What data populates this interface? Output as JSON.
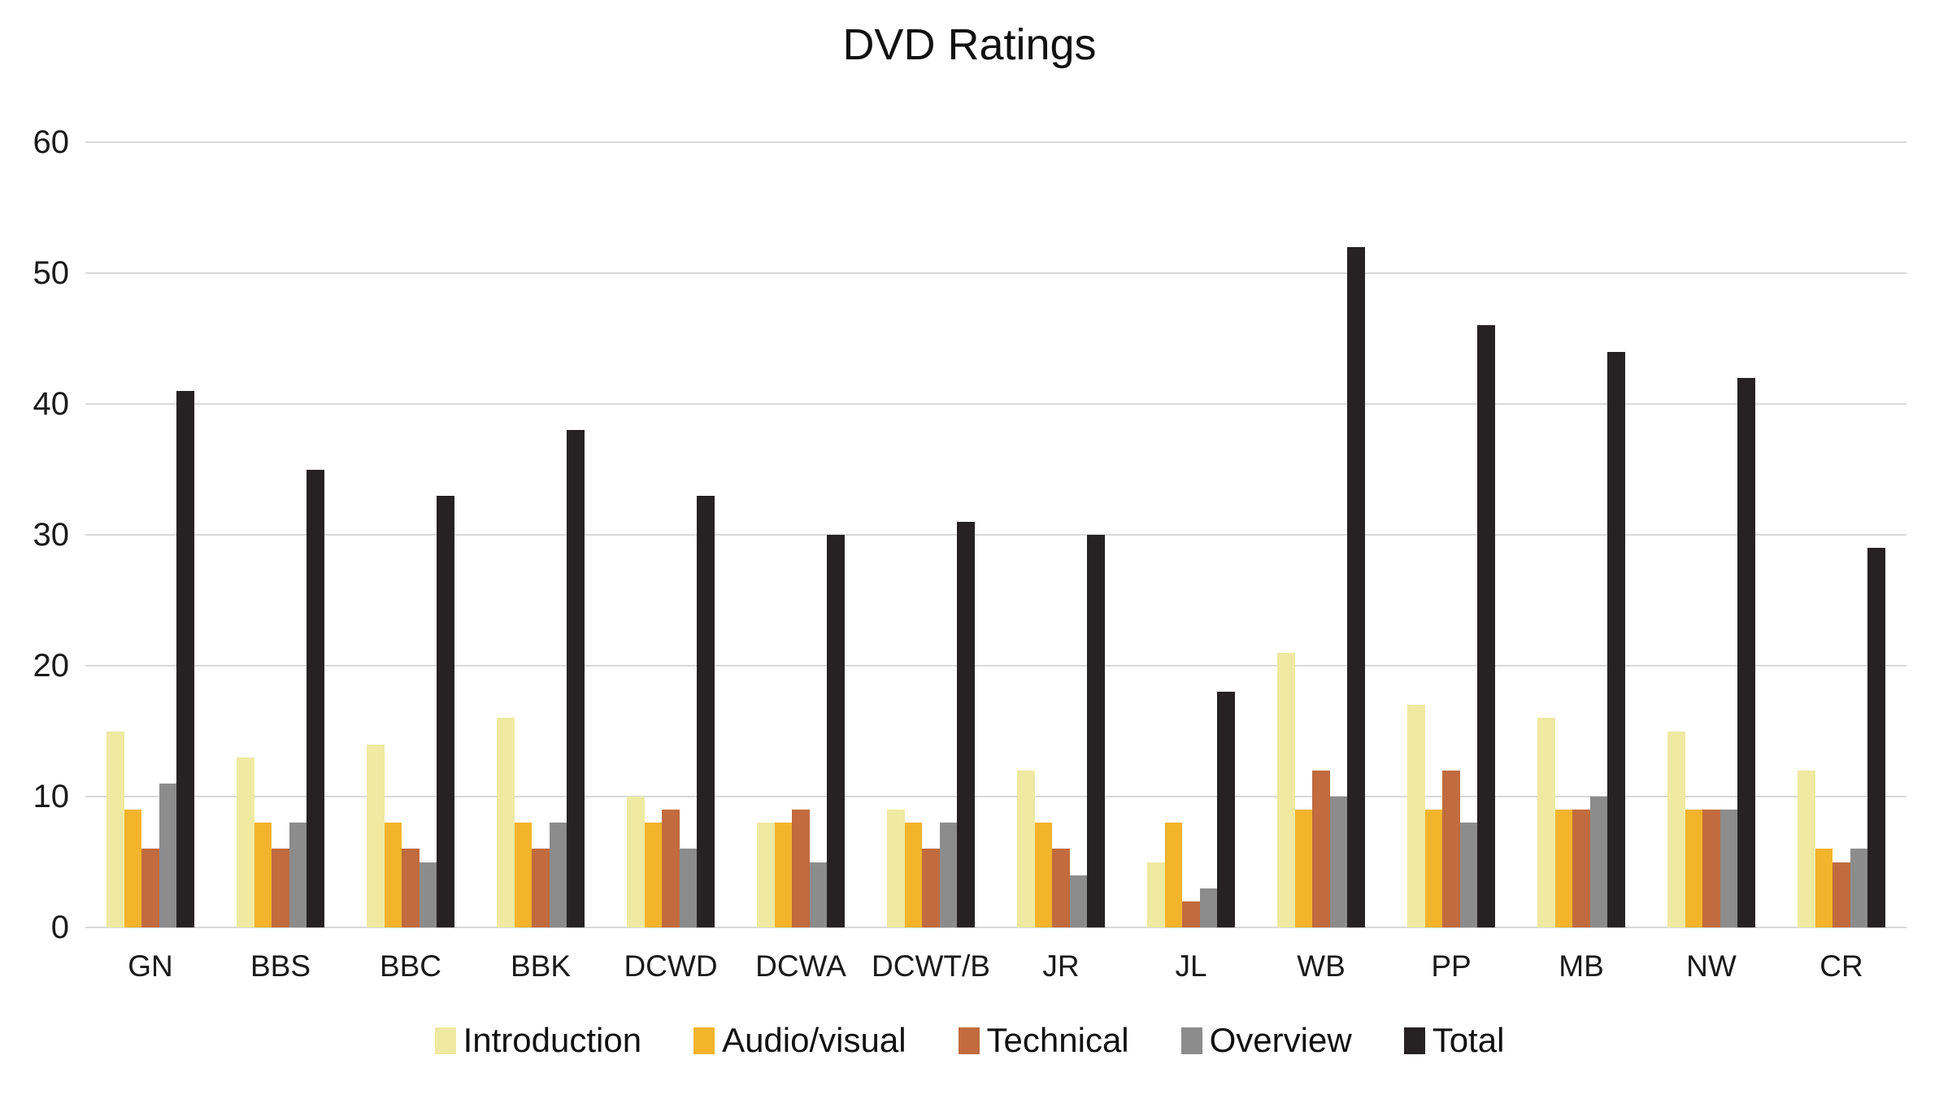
{
  "chart_data": {
    "type": "bar",
    "title": "DVD Ratings",
    "categories": [
      "GN",
      "BBS",
      "BBC",
      "BBK",
      "DCWD",
      "DCWA",
      "DCWT/B",
      "JR",
      "JL",
      "WB",
      "PP",
      "MB",
      "NW",
      "CR"
    ],
    "series": [
      {
        "name": "Introduction",
        "color": "#EFE9A2",
        "values": [
          15,
          13,
          14,
          16,
          10,
          8,
          9,
          12,
          5,
          21,
          17,
          16,
          15,
          12
        ]
      },
      {
        "name": "Audio/visual",
        "color": "#F3B42C",
        "values": [
          9,
          8,
          8,
          8,
          8,
          8,
          8,
          8,
          8,
          9,
          9,
          9,
          9,
          6
        ]
      },
      {
        "name": "Technical",
        "color": "#C16B3E",
        "values": [
          6,
          6,
          6,
          6,
          9,
          9,
          6,
          6,
          2,
          12,
          12,
          9,
          9,
          5
        ]
      },
      {
        "name": "Overview",
        "color": "#8C8C8C",
        "values": [
          11,
          8,
          5,
          8,
          6,
          5,
          8,
          4,
          3,
          10,
          8,
          10,
          9,
          6
        ]
      },
      {
        "name": "Total",
        "color": "#262223",
        "values": [
          41,
          35,
          33,
          38,
          33,
          30,
          31,
          30,
          18,
          52,
          46,
          44,
          42,
          29
        ]
      }
    ],
    "ylim": [
      0,
      60
    ],
    "yticks": [
      0,
      10,
      20,
      30,
      40,
      50,
      60
    ],
    "grid": "horizontal",
    "gridline_color": "#D9D9D9",
    "legend_position": "bottom",
    "background": "#FFFFFF",
    "text_color": "#1a1a1a"
  }
}
